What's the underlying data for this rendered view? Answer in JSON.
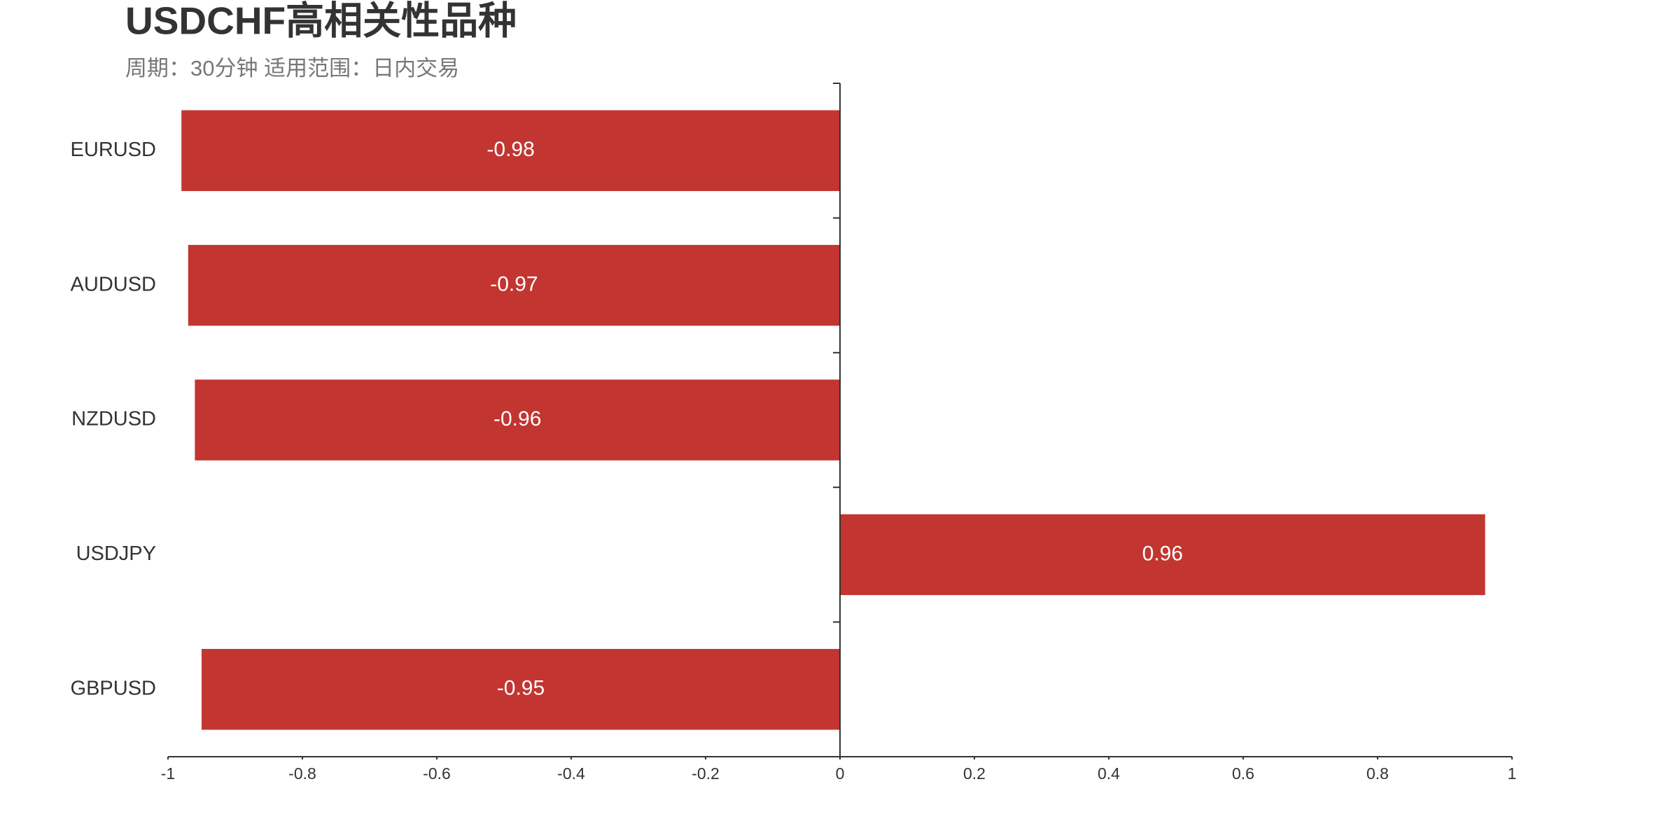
{
  "chart_data": {
    "type": "bar",
    "orientation": "horizontal",
    "title": "USDCHF高相关性品种",
    "subtitle": "周期：30分钟 适用范围：日内交易",
    "categories": [
      "EURUSD",
      "AUDUSD",
      "NZDUSD",
      "USDJPY",
      "GBPUSD"
    ],
    "values": [
      -0.98,
      -0.97,
      -0.96,
      0.96,
      -0.95
    ],
    "color": "#c23531",
    "xlim": [
      -1,
      1
    ],
    "xticks": [
      -1,
      -0.8,
      -0.6,
      -0.4,
      -0.2,
      0,
      0.2,
      0.4,
      0.6,
      0.8,
      1
    ]
  }
}
